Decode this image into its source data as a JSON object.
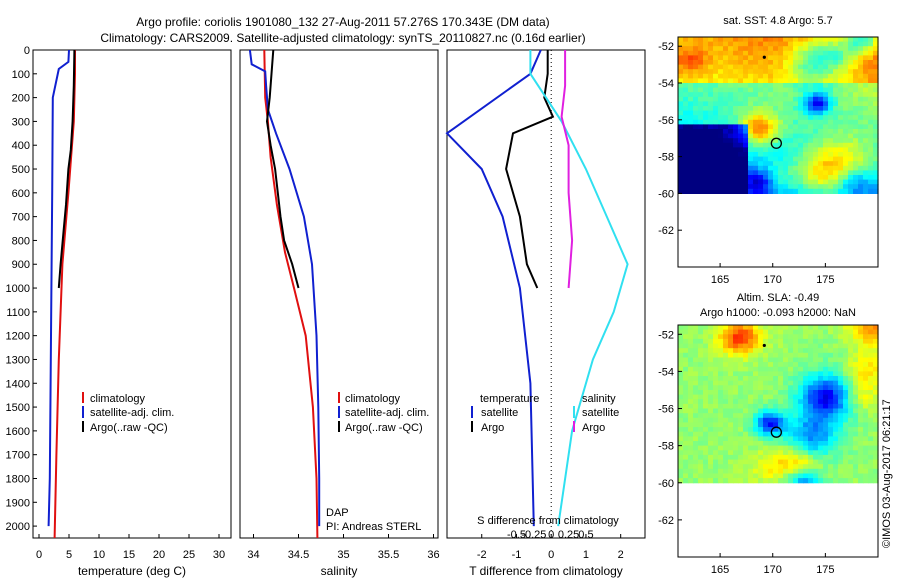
{
  "title_line1": "Argo profile: coriolis 1901080_132 27-Aug-2011 57.276S 170.343E (DM data)",
  "title_line2": "Climatology: CARS2009. Satellite-adjusted climatology: synTS_20110827.nc (0.16d earlier)",
  "side_stamp": "©IMOS 03-Aug-2017 06:21:17",
  "colors": {
    "climatology": "#e01010",
    "satellite": "#1020d0",
    "argo": "#000000",
    "sat_salinity": "#30e0f0",
    "argo_salinity": "#e020e0"
  },
  "chart_data": [
    {
      "type": "line",
      "id": "temperature",
      "xlabel": "temperature (deg C)",
      "ylabel": "",
      "xlim": [
        -1,
        32
      ],
      "ylim": [
        2050,
        0
      ],
      "grid": false,
      "x_ticks": [
        "0",
        "5",
        "10",
        "15",
        "20",
        "25",
        "30"
      ],
      "y_ticks": [
        "0",
        "100",
        "200",
        "300",
        "400",
        "500",
        "600",
        "700",
        "800",
        "900",
        "1000",
        "1100",
        "1200",
        "1300",
        "1400",
        "1500",
        "1600",
        "1700",
        "1800",
        "1900",
        "2000"
      ],
      "legend": {
        "placement": "lower-center",
        "entries": [
          "climatology",
          "satellite-adj. clim.",
          "Argo(..raw -QC)"
        ]
      },
      "series": [
        {
          "name": "climatology",
          "color": "#e01010",
          "points": [
            [
              6.0,
              0
            ],
            [
              6.0,
              100
            ],
            [
              5.8,
              300
            ],
            [
              4.9,
              600
            ],
            [
              3.9,
              900
            ],
            [
              3.3,
              1300
            ],
            [
              2.9,
              1700
            ],
            [
              2.6,
              2050
            ]
          ]
        },
        {
          "name": "satellite-adj. clim.",
          "color": "#1020d0",
          "points": [
            [
              5.0,
              0
            ],
            [
              4.9,
              50
            ],
            [
              3.3,
              80
            ],
            [
              2.3,
              200
            ],
            [
              2.2,
              600
            ],
            [
              2.0,
              1200
            ],
            [
              1.8,
              1800
            ],
            [
              1.6,
              2000
            ]
          ]
        },
        {
          "name": "Argo(..raw -QC)",
          "color": "#000000",
          "points": [
            [
              5.9,
              0
            ],
            [
              5.8,
              150
            ],
            [
              5.6,
              300
            ],
            [
              5.3,
              420
            ],
            [
              4.9,
              500
            ],
            [
              4.5,
              650
            ],
            [
              4.1,
              760
            ],
            [
              3.6,
              900
            ],
            [
              3.3,
              1000
            ]
          ]
        }
      ]
    },
    {
      "type": "line",
      "id": "salinity",
      "xlabel": "salinity",
      "xlim": [
        33.85,
        36.05
      ],
      "ylim": [
        2050,
        0
      ],
      "grid": false,
      "x_ticks": [
        [
          "34",
          34
        ],
        [
          "34.5",
          34.5
        ],
        [
          "35",
          35
        ],
        [
          "35.5",
          35.5
        ],
        [
          "36",
          36
        ]
      ],
      "legend": {
        "placement": "lower-center",
        "entries": [
          "climatology",
          "satellite-adj. clim.",
          "Argo(..raw -QC)"
        ]
      },
      "annotations": [
        "DAP",
        "PI: Andreas STERL"
      ],
      "series": [
        {
          "name": "climatology",
          "color": "#e01010",
          "points": [
            [
              34.12,
              0
            ],
            [
              34.13,
              200
            ],
            [
              34.16,
              300
            ],
            [
              34.19,
              450
            ],
            [
              34.26,
              650
            ],
            [
              34.35,
              850
            ],
            [
              34.45,
              1000
            ],
            [
              34.58,
              1200
            ],
            [
              34.66,
              1500
            ],
            [
              34.7,
              1800
            ],
            [
              34.71,
              2050
            ]
          ]
        },
        {
          "name": "satellite-adj. clim.",
          "color": "#1020d0",
          "points": [
            [
              33.96,
              0
            ],
            [
              33.98,
              60
            ],
            [
              34.13,
              90
            ],
            [
              34.14,
              150
            ],
            [
              34.16,
              250
            ],
            [
              34.25,
              350
            ],
            [
              34.4,
              500
            ],
            [
              34.56,
              700
            ],
            [
              34.65,
              900
            ],
            [
              34.7,
              1200
            ],
            [
              34.72,
              1500
            ],
            [
              34.73,
              1800
            ],
            [
              34.73,
              2000
            ]
          ]
        },
        {
          "name": "Argo(..raw -QC)",
          "color": "#000000",
          "points": [
            [
              34.22,
              0
            ],
            [
              34.2,
              100
            ],
            [
              34.18,
              200
            ],
            [
              34.15,
              300
            ],
            [
              34.19,
              400
            ],
            [
              34.24,
              500
            ],
            [
              34.27,
              600
            ],
            [
              34.3,
              700
            ],
            [
              34.34,
              800
            ],
            [
              34.43,
              900
            ],
            [
              34.5,
              1000
            ]
          ]
        }
      ]
    },
    {
      "type": "line",
      "id": "difference",
      "xlabel": "T difference from climatology",
      "xlabel_top": "S difference from climatology",
      "xlim": [
        -3.0,
        2.7
      ],
      "ylim": [
        2050,
        0
      ],
      "grid": false,
      "x_ticks": [
        [
          "-2",
          -2
        ],
        [
          "-1",
          -1
        ],
        [
          "0",
          0
        ],
        [
          "1",
          1
        ],
        [
          "2",
          2
        ]
      ],
      "x_ticks_salinity": [
        [
          "-0.5",
          -1.0
        ],
        [
          "-0.25",
          -0.5
        ],
        [
          "0",
          0
        ],
        [
          "0.25",
          0.5
        ],
        [
          "0.5",
          1.0
        ]
      ],
      "legend": {
        "placement": "lower-center",
        "temperature": {
          "label": "temperature",
          "entries": [
            "satellite",
            "Argo"
          ]
        },
        "salinity": {
          "label": "salinity",
          "entries": [
            "satellite",
            "Argo"
          ]
        }
      },
      "series": [
        {
          "name": "temperature satellite",
          "color": "#1020d0",
          "points": [
            [
              -0.3,
              0
            ],
            [
              -0.6,
              100
            ],
            [
              -3.0,
              350
            ],
            [
              -2.0,
              500
            ],
            [
              -1.4,
              700
            ],
            [
              -0.9,
              1000
            ],
            [
              -0.6,
              1400
            ],
            [
              -0.5,
              2000
            ]
          ]
        },
        {
          "name": "temperature Argo",
          "color": "#000000",
          "points": [
            [
              -0.1,
              0
            ],
            [
              -0.1,
              100
            ],
            [
              -0.2,
              200
            ],
            [
              0.05,
              280
            ],
            [
              -1.1,
              350
            ],
            [
              -1.3,
              500
            ],
            [
              -0.9,
              700
            ],
            [
              -0.7,
              900
            ],
            [
              -0.4,
              1000
            ]
          ]
        },
        {
          "name": "salinity satellite",
          "color": "#30e0f0",
          "points": [
            [
              -0.6,
              0
            ],
            [
              -0.6,
              100
            ],
            [
              0.3,
              300
            ],
            [
              1.0,
              500
            ],
            [
              1.6,
              700
            ],
            [
              2.2,
              900
            ],
            [
              1.8,
              1100
            ],
            [
              1.2,
              1300
            ],
            [
              0.6,
              1600
            ],
            [
              0.2,
              2000
            ]
          ]
        },
        {
          "name": "salinity Argo",
          "color": "#e020e0",
          "points": [
            [
              0.4,
              0
            ],
            [
              0.4,
              150
            ],
            [
              0.3,
              280
            ],
            [
              0.5,
              400
            ],
            [
              0.5,
              600
            ],
            [
              0.6,
              800
            ],
            [
              0.5,
              1000
            ]
          ]
        }
      ]
    },
    {
      "type": "heatmap",
      "id": "sst_map",
      "title": "sat. SST: 4.8  Argo: 5.7",
      "xlim": [
        161,
        180
      ],
      "ylim": [
        -64,
        -51.5
      ],
      "x_ticks": [
        [
          "165",
          165
        ],
        [
          "170",
          170
        ],
        [
          "175",
          175
        ]
      ],
      "y_ticks": [
        [
          "-52",
          -52
        ],
        [
          "-54",
          -54
        ],
        [
          "-56",
          -56
        ],
        [
          "-58",
          -58
        ],
        [
          "-60",
          -60
        ],
        [
          "-62",
          -62
        ]
      ],
      "data_lat_range": [
        -60,
        -51.5
      ],
      "argo_marker": [
        170.343,
        -57.276
      ]
    },
    {
      "type": "heatmap",
      "id": "sla_map",
      "title_line1": "Altim. SLA: -0.49",
      "title_line2": "Argo h1000: -0.093 h2000: NaN",
      "xlim": [
        161,
        180
      ],
      "ylim": [
        -64,
        -51.5
      ],
      "x_ticks": [
        [
          "165",
          165
        ],
        [
          "170",
          170
        ],
        [
          "175",
          175
        ]
      ],
      "y_ticks": [
        [
          "-52",
          -52
        ],
        [
          "-54",
          -54
        ],
        [
          "-56",
          -56
        ],
        [
          "-58",
          -58
        ],
        [
          "-60",
          -60
        ],
        [
          "-62",
          -62
        ]
      ],
      "data_lat_range": [
        -60,
        -51.5
      ],
      "argo_marker": [
        170.343,
        -57.276
      ]
    }
  ]
}
